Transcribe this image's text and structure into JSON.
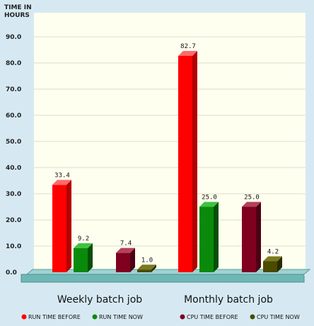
{
  "chart_data": {
    "type": "bar",
    "ylabel": "TIME IN HOURS",
    "ylabel_lines": [
      "TIME IN",
      "HOURS"
    ],
    "ylim": [
      0,
      90
    ],
    "yticks": [
      "0.0",
      "10.0",
      "20.0",
      "30.0",
      "40.0",
      "50.0",
      "60.0",
      "70.0",
      "80.0",
      "90.0"
    ],
    "ytick_values": [
      0,
      10,
      20,
      30,
      40,
      50,
      60,
      70,
      80,
      90
    ],
    "categories": [
      "Weekly batch job",
      "Monthly batch job"
    ],
    "series": [
      {
        "name": "RUN TIME BEFORE",
        "values": [
          33.4,
          82.7
        ],
        "labels": [
          "33.4",
          "82.7"
        ],
        "color": "#ff0000",
        "side": "#b30000",
        "top": "#ff6a6a"
      },
      {
        "name": "RUN TIME NOW",
        "values": [
          9.2,
          25.0
        ],
        "labels": [
          "9.2",
          "25.0"
        ],
        "color": "#0a8a0a",
        "side": "#055005",
        "top": "#3fc23f"
      },
      {
        "name": "CPU TIME BEFORE",
        "values": [
          7.4,
          25.0
        ],
        "labels": [
          "7.4",
          "25.0"
        ],
        "color": "#800020",
        "side": "#4d0013",
        "top": "#b5405a"
      },
      {
        "name": "CPU TIME NOW",
        "values": [
          1.0,
          4.2
        ],
        "labels": [
          "1.0",
          "4.2"
        ],
        "color": "#4a4a00",
        "side": "#2a2a00",
        "top": "#7a7a20"
      }
    ],
    "grid": true,
    "legend_position": "bottom"
  },
  "colors": {
    "background": "#d6e9f2",
    "plot_area": "#fffff0",
    "floor": "#6fb7b7",
    "grid": "#dcdcc8"
  }
}
